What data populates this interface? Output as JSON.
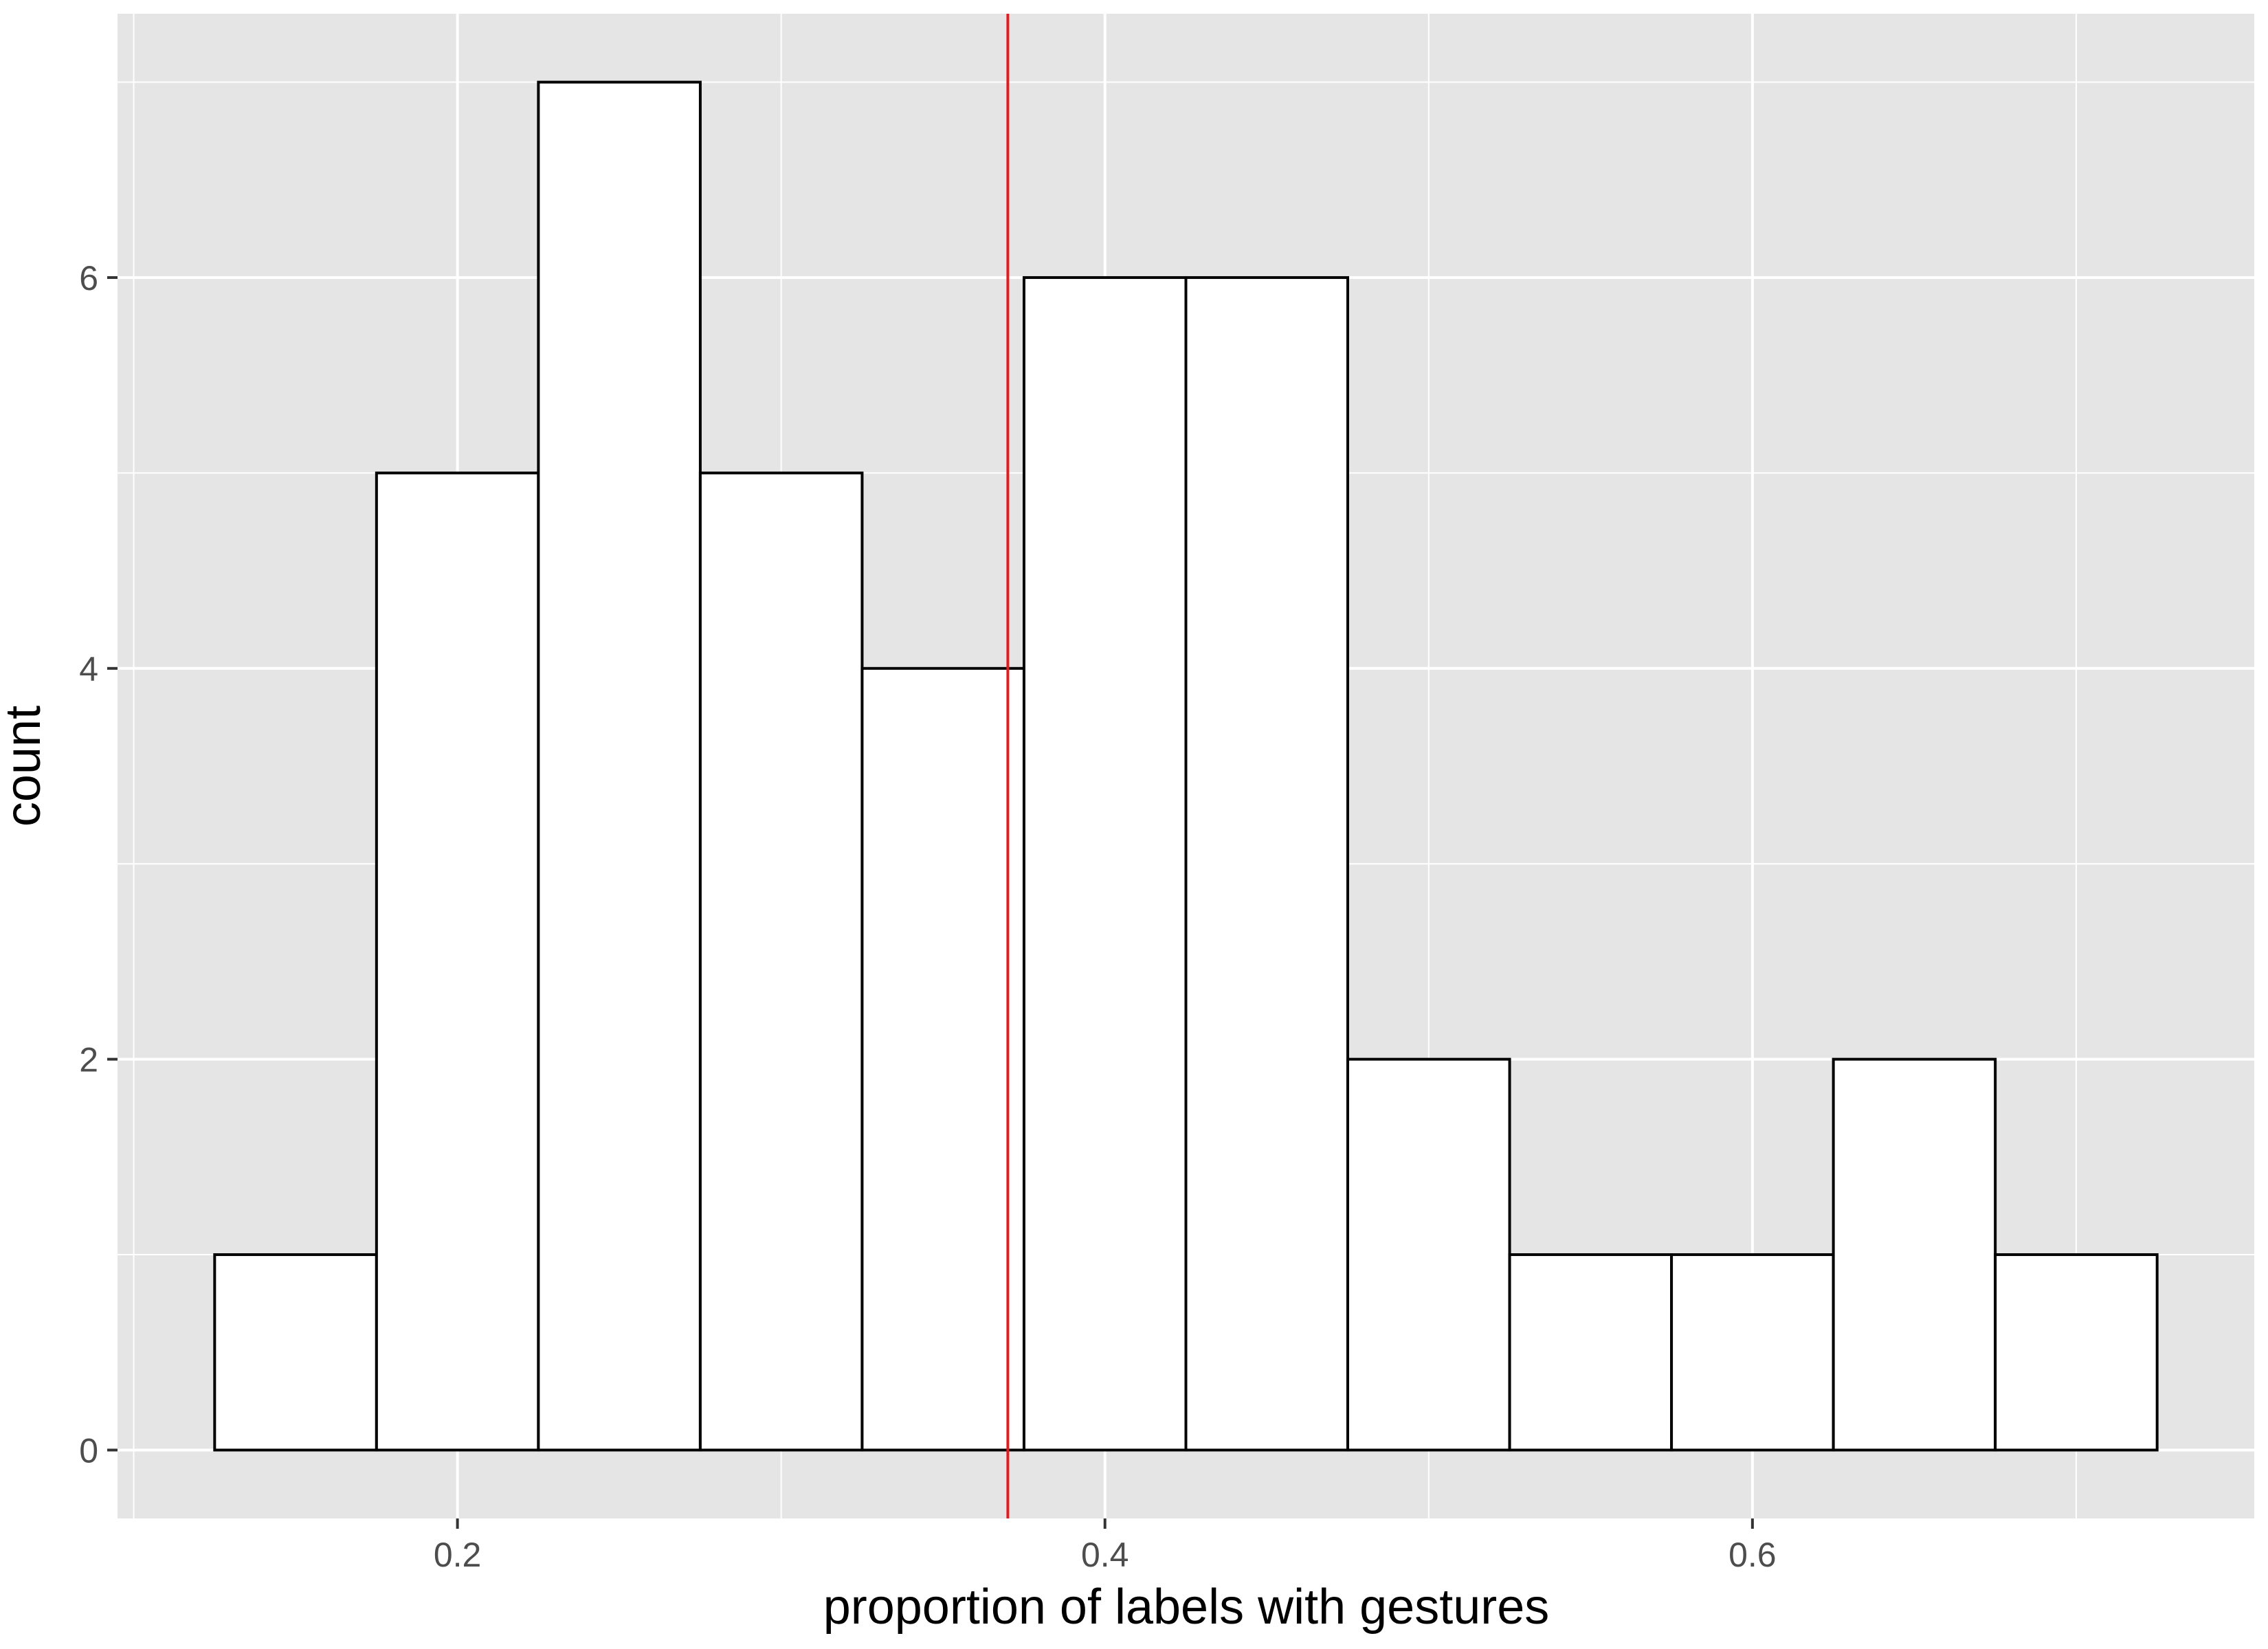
{
  "chart_data": {
    "type": "bar",
    "subtype": "histogram",
    "title": "",
    "xlabel": "proportion of labels with gestures",
    "ylabel": "count",
    "bin_width": 0.05,
    "bins": [
      {
        "x_min": 0.125,
        "x_max": 0.175,
        "count": 1
      },
      {
        "x_min": 0.175,
        "x_max": 0.225,
        "count": 5
      },
      {
        "x_min": 0.225,
        "x_max": 0.275,
        "count": 7
      },
      {
        "x_min": 0.275,
        "x_max": 0.325,
        "count": 5
      },
      {
        "x_min": 0.325,
        "x_max": 0.375,
        "count": 4
      },
      {
        "x_min": 0.375,
        "x_max": 0.425,
        "count": 6
      },
      {
        "x_min": 0.425,
        "x_max": 0.475,
        "count": 6
      },
      {
        "x_min": 0.475,
        "x_max": 0.525,
        "count": 2
      },
      {
        "x_min": 0.525,
        "x_max": 0.575,
        "count": 1
      },
      {
        "x_min": 0.575,
        "x_max": 0.625,
        "count": 1
      },
      {
        "x_min": 0.625,
        "x_max": 0.675,
        "count": 2
      },
      {
        "x_min": 0.675,
        "x_max": 0.725,
        "count": 1
      }
    ],
    "vline": {
      "x": 0.37,
      "color": "#e41a1c"
    },
    "xlim": [
      0.095,
      0.755
    ],
    "ylim": [
      -0.35,
      7.35
    ],
    "x_ticks": [
      0.2,
      0.4,
      0.6
    ],
    "x_tick_labels": [
      "0.2",
      "0.4",
      "0.6"
    ],
    "y_ticks": [
      0,
      2,
      4,
      6
    ],
    "y_tick_labels": [
      "0",
      "2",
      "4",
      "6"
    ],
    "grid": true,
    "legend": "none",
    "colors": {
      "panel_background": "#e5e5e5",
      "grid": "#ffffff",
      "bar_fill": "#ffffff",
      "bar_outline": "#000000",
      "tick_label": "#4d4d4d"
    }
  }
}
